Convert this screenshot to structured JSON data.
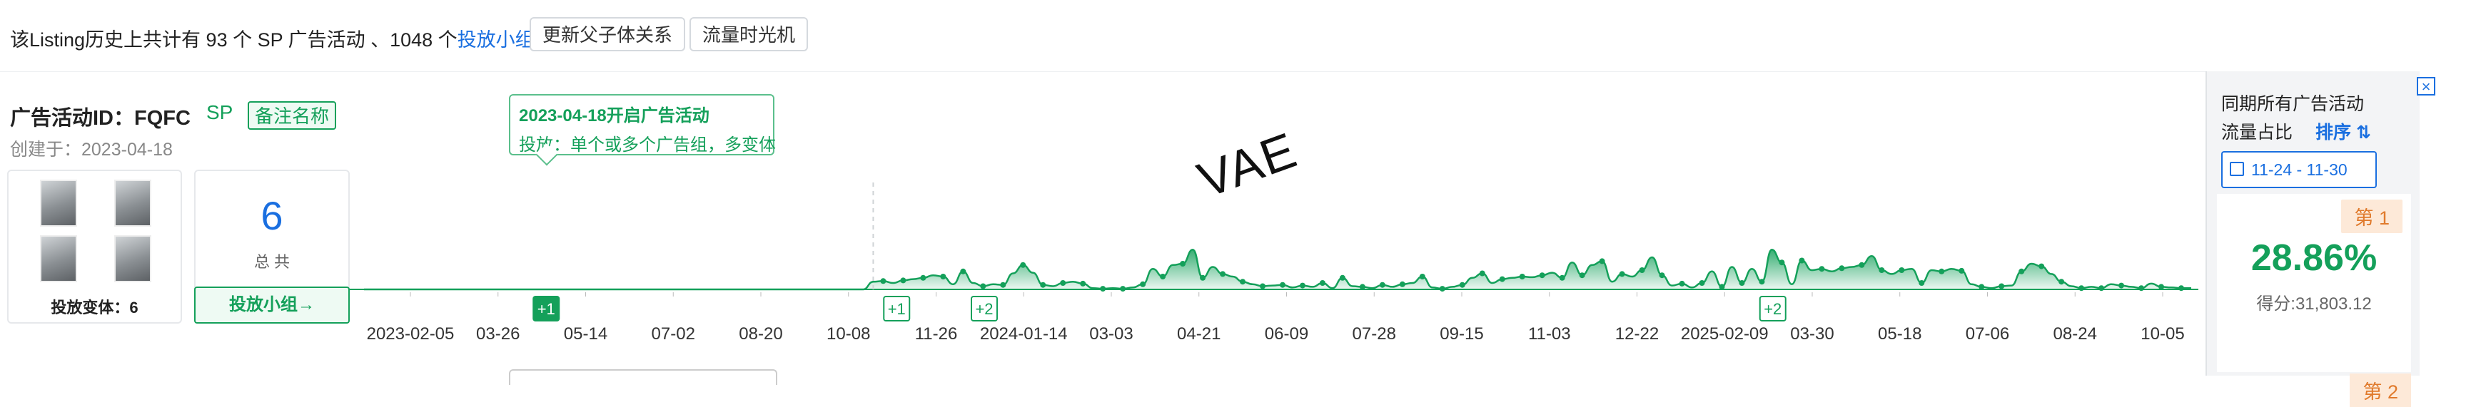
{
  "header": {
    "summary_prefix": "该Listing历史上共计有 93 个 SP 广告活动 、1048 个",
    "summary_link": "投放小组",
    "help_icon": "?",
    "button_update": "更新父子体关系",
    "button_timemachine": "流量时光机"
  },
  "campaign": {
    "title": "广告活动ID：FQFC",
    "type_tag": "SP",
    "note_tag": "备注名称",
    "created": "创建于：2023-04-18",
    "variant_label": "投放变体：6",
    "count": "6",
    "count_label": "总 共",
    "group_button": "投放小组→"
  },
  "tooltip": {
    "title": "2023-04-18开启广告活动",
    "desc": "投放：单个或多个广告组，多变体"
  },
  "watermark": "VAE",
  "side_panel": {
    "close_icon": "×",
    "title_line1": "同期所有广告活动",
    "title_line2": "流量占比",
    "sort_label": "排序",
    "date_range": "11-24 - 11-30",
    "rank1": "第 1",
    "percent": "28.86%",
    "score": "得分:31,803.12",
    "rank2": "第 2"
  },
  "chart_data": {
    "type": "area",
    "color": "#14a05a",
    "x_tick_labels": [
      "2023-02-05",
      "03-26",
      "05-14",
      "07-02",
      "08-20",
      "10-08",
      "11-26",
      "2024-01-14",
      "03-03",
      "04-21",
      "06-09",
      "07-28",
      "09-15",
      "11-03",
      "12-22",
      "2025-02-09",
      "03-30",
      "05-18",
      "07-06",
      "08-24",
      "10-05"
    ],
    "markers": [
      {
        "label": "+1",
        "style": "filled",
        "tick_after": "03-26"
      },
      {
        "label": "+1",
        "style": "outline",
        "tick_after": "10-08"
      },
      {
        "label": "+2",
        "style": "outline",
        "tick_after": "11-26"
      },
      {
        "label": "+2",
        "style": "outline",
        "tick_after": "2025-02-09"
      }
    ],
    "values": [
      0,
      0,
      0,
      0,
      0,
      0,
      0,
      0,
      0,
      0,
      0,
      0,
      0,
      0,
      0,
      0,
      0,
      0,
      0,
      0,
      0,
      0,
      0,
      0,
      0,
      0,
      0,
      0,
      0,
      0,
      0,
      0,
      0,
      0,
      0,
      0,
      0,
      0,
      0,
      0,
      0,
      0,
      0,
      0,
      0,
      0,
      0,
      0,
      0,
      0,
      0,
      0.12,
      0.13,
      0.1,
      0.14,
      0.16,
      0.18,
      0.22,
      0.2,
      0.08,
      0.28,
      0.1,
      0.05,
      0.08,
      0.07,
      0.25,
      0.38,
      0.26,
      0.07,
      0.05,
      0.1,
      0.12,
      0.09,
      0.02,
      0.01,
      0.02,
      0.01,
      0.03,
      0.08,
      0.32,
      0.2,
      0.38,
      0.4,
      0.62,
      0.18,
      0.35,
      0.24,
      0.2,
      0.12,
      0.08,
      0.05,
      0.06,
      0.07,
      0.03,
      0.06,
      0.04,
      0.1,
      0.02,
      0.18,
      0.05,
      0.04,
      0.02,
      0.07,
      0.04,
      0.08,
      0.1,
      0.2,
      0.03,
      0.01,
      0.04,
      0.07,
      0.18,
      0.25,
      0.1,
      0.16,
      0.18,
      0.2,
      0.19,
      0.22,
      0.26,
      0.18,
      0.42,
      0.22,
      0.38,
      0.44,
      0.12,
      0.24,
      0.2,
      0.3,
      0.5,
      0.22,
      0.06,
      0.09,
      0.03,
      0.1,
      0.28,
      0.04,
      0.35,
      0.1,
      0.32,
      0.12,
      0.62,
      0.42,
      0.08,
      0.45,
      0.3,
      0.32,
      0.28,
      0.33,
      0.35,
      0.38,
      0.52,
      0.3,
      0.24,
      0.3,
      0.32,
      0.1,
      0.3,
      0.28,
      0.32,
      0.29,
      0.08,
      0.04,
      0.02,
      0.05,
      0.06,
      0.28,
      0.4,
      0.36,
      0.24,
      0.12,
      0.05,
      0.02,
      0.04,
      0.02,
      0.08,
      0.06,
      0.04,
      0.02,
      0.09,
      0.04,
      0.03,
      0.02,
      0.02
    ]
  }
}
